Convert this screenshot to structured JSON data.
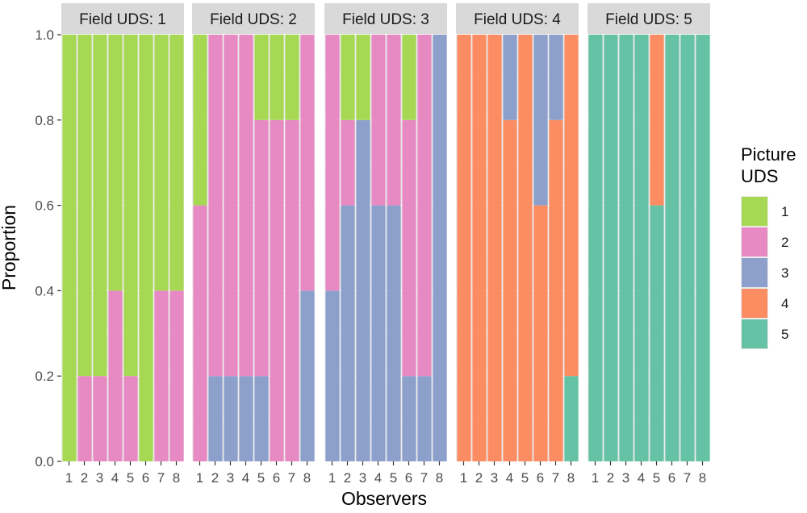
{
  "chart_data": {
    "type": "bar",
    "stacked": true,
    "facet_label_prefix": "Field UDS: ",
    "facets": [
      "1",
      "2",
      "3",
      "4",
      "5"
    ],
    "x_categories": [
      "1",
      "2",
      "3",
      "4",
      "5",
      "6",
      "7",
      "8"
    ],
    "xlabel": "Observers",
    "ylabel": "Proportion",
    "ylim": [
      0,
      1
    ],
    "yticks": [
      "0.0",
      "0.2",
      "0.4",
      "0.6",
      "0.8",
      "1.0"
    ],
    "grid": true,
    "legend": {
      "title_lines": [
        "Picture",
        "UDS"
      ],
      "position": "right",
      "items": [
        {
          "label": "1",
          "color": "#a6d854"
        },
        {
          "label": "2",
          "color": "#e78ac3"
        },
        {
          "label": "3",
          "color": "#8da0cb"
        },
        {
          "label": "4",
          "color": "#fc8d62"
        },
        {
          "label": "5",
          "color": "#66c2a5"
        }
      ]
    },
    "panels": [
      {
        "field_uds": "1",
        "bars": [
          {
            "observer": "1",
            "proportions": {
              "1": 1.0,
              "2": 0.0,
              "3": 0.0,
              "4": 0.0,
              "5": 0.0
            }
          },
          {
            "observer": "2",
            "proportions": {
              "1": 0.8,
              "2": 0.2,
              "3": 0.0,
              "4": 0.0,
              "5": 0.0
            }
          },
          {
            "observer": "3",
            "proportions": {
              "1": 0.8,
              "2": 0.2,
              "3": 0.0,
              "4": 0.0,
              "5": 0.0
            }
          },
          {
            "observer": "4",
            "proportions": {
              "1": 0.6,
              "2": 0.4,
              "3": 0.0,
              "4": 0.0,
              "5": 0.0
            }
          },
          {
            "observer": "5",
            "proportions": {
              "1": 0.8,
              "2": 0.2,
              "3": 0.0,
              "4": 0.0,
              "5": 0.0
            }
          },
          {
            "observer": "6",
            "proportions": {
              "1": 1.0,
              "2": 0.0,
              "3": 0.0,
              "4": 0.0,
              "5": 0.0
            }
          },
          {
            "observer": "7",
            "proportions": {
              "1": 0.6,
              "2": 0.4,
              "3": 0.0,
              "4": 0.0,
              "5": 0.0
            }
          },
          {
            "observer": "8",
            "proportions": {
              "1": 0.6,
              "2": 0.4,
              "3": 0.0,
              "4": 0.0,
              "5": 0.0
            }
          }
        ]
      },
      {
        "field_uds": "2",
        "bars": [
          {
            "observer": "1",
            "proportions": {
              "1": 0.4,
              "2": 0.6,
              "3": 0.0,
              "4": 0.0,
              "5": 0.0
            }
          },
          {
            "observer": "2",
            "proportions": {
              "1": 0.0,
              "2": 0.8,
              "3": 0.2,
              "4": 0.0,
              "5": 0.0
            }
          },
          {
            "observer": "3",
            "proportions": {
              "1": 0.0,
              "2": 0.8,
              "3": 0.2,
              "4": 0.0,
              "5": 0.0
            }
          },
          {
            "observer": "4",
            "proportions": {
              "1": 0.0,
              "2": 0.8,
              "3": 0.2,
              "4": 0.0,
              "5": 0.0
            }
          },
          {
            "observer": "5",
            "proportions": {
              "1": 0.2,
              "2": 0.6,
              "3": 0.2,
              "4": 0.0,
              "5": 0.0
            }
          },
          {
            "observer": "6",
            "proportions": {
              "1": 0.2,
              "2": 0.8,
              "3": 0.0,
              "4": 0.0,
              "5": 0.0
            }
          },
          {
            "observer": "7",
            "proportions": {
              "1": 0.2,
              "2": 0.8,
              "3": 0.0,
              "4": 0.0,
              "5": 0.0
            }
          },
          {
            "observer": "8",
            "proportions": {
              "1": 0.0,
              "2": 0.6,
              "3": 0.4,
              "4": 0.0,
              "5": 0.0
            }
          }
        ]
      },
      {
        "field_uds": "3",
        "bars": [
          {
            "observer": "1",
            "proportions": {
              "1": 0.0,
              "2": 0.6,
              "3": 0.4,
              "4": 0.0,
              "5": 0.0
            }
          },
          {
            "observer": "2",
            "proportions": {
              "1": 0.2,
              "2": 0.2,
              "3": 0.6,
              "4": 0.0,
              "5": 0.0
            }
          },
          {
            "observer": "3",
            "proportions": {
              "1": 0.2,
              "2": 0.0,
              "3": 0.8,
              "4": 0.0,
              "5": 0.0
            }
          },
          {
            "observer": "4",
            "proportions": {
              "1": 0.0,
              "2": 0.4,
              "3": 0.6,
              "4": 0.0,
              "5": 0.0
            }
          },
          {
            "observer": "5",
            "proportions": {
              "1": 0.0,
              "2": 0.4,
              "3": 0.6,
              "4": 0.0,
              "5": 0.0
            }
          },
          {
            "observer": "6",
            "proportions": {
              "1": 0.2,
              "2": 0.6,
              "3": 0.2,
              "4": 0.0,
              "5": 0.0
            }
          },
          {
            "observer": "7",
            "proportions": {
              "1": 0.0,
              "2": 0.8,
              "3": 0.2,
              "4": 0.0,
              "5": 0.0
            }
          },
          {
            "observer": "8",
            "proportions": {
              "1": 0.0,
              "2": 0.0,
              "3": 1.0,
              "4": 0.0,
              "5": 0.0
            }
          }
        ]
      },
      {
        "field_uds": "4",
        "bars": [
          {
            "observer": "1",
            "proportions": {
              "1": 0.0,
              "2": 0.0,
              "3": 0.0,
              "4": 1.0,
              "5": 0.0
            }
          },
          {
            "observer": "2",
            "proportions": {
              "1": 0.0,
              "2": 0.0,
              "3": 0.0,
              "4": 1.0,
              "5": 0.0
            }
          },
          {
            "observer": "3",
            "proportions": {
              "1": 0.0,
              "2": 0.0,
              "3": 0.0,
              "4": 1.0,
              "5": 0.0
            }
          },
          {
            "observer": "4",
            "proportions": {
              "1": 0.0,
              "2": 0.0,
              "3": 0.2,
              "4": 0.8,
              "5": 0.0
            }
          },
          {
            "observer": "5",
            "proportions": {
              "1": 0.0,
              "2": 0.0,
              "3": 0.0,
              "4": 1.0,
              "5": 0.0
            }
          },
          {
            "observer": "6",
            "proportions": {
              "1": 0.0,
              "2": 0.0,
              "3": 0.4,
              "4": 0.6,
              "5": 0.0
            }
          },
          {
            "observer": "7",
            "proportions": {
              "1": 0.0,
              "2": 0.0,
              "3": 0.2,
              "4": 0.8,
              "5": 0.0
            }
          },
          {
            "observer": "8",
            "proportions": {
              "1": 0.0,
              "2": 0.0,
              "3": 0.0,
              "4": 0.8,
              "5": 0.2
            }
          }
        ]
      },
      {
        "field_uds": "5",
        "bars": [
          {
            "observer": "1",
            "proportions": {
              "1": 0.0,
              "2": 0.0,
              "3": 0.0,
              "4": 0.0,
              "5": 1.0
            }
          },
          {
            "observer": "2",
            "proportions": {
              "1": 0.0,
              "2": 0.0,
              "3": 0.0,
              "4": 0.0,
              "5": 1.0
            }
          },
          {
            "observer": "3",
            "proportions": {
              "1": 0.0,
              "2": 0.0,
              "3": 0.0,
              "4": 0.0,
              "5": 1.0
            }
          },
          {
            "observer": "4",
            "proportions": {
              "1": 0.0,
              "2": 0.0,
              "3": 0.0,
              "4": 0.0,
              "5": 1.0
            }
          },
          {
            "observer": "5",
            "proportions": {
              "1": 0.0,
              "2": 0.0,
              "3": 0.0,
              "4": 0.4,
              "5": 0.6
            }
          },
          {
            "observer": "6",
            "proportions": {
              "1": 0.0,
              "2": 0.0,
              "3": 0.0,
              "4": 0.0,
              "5": 1.0
            }
          },
          {
            "observer": "7",
            "proportions": {
              "1": 0.0,
              "2": 0.0,
              "3": 0.0,
              "4": 0.0,
              "5": 1.0
            }
          },
          {
            "observer": "8",
            "proportions": {
              "1": 0.0,
              "2": 0.0,
              "3": 0.0,
              "4": 0.0,
              "5": 1.0
            }
          }
        ]
      }
    ]
  }
}
